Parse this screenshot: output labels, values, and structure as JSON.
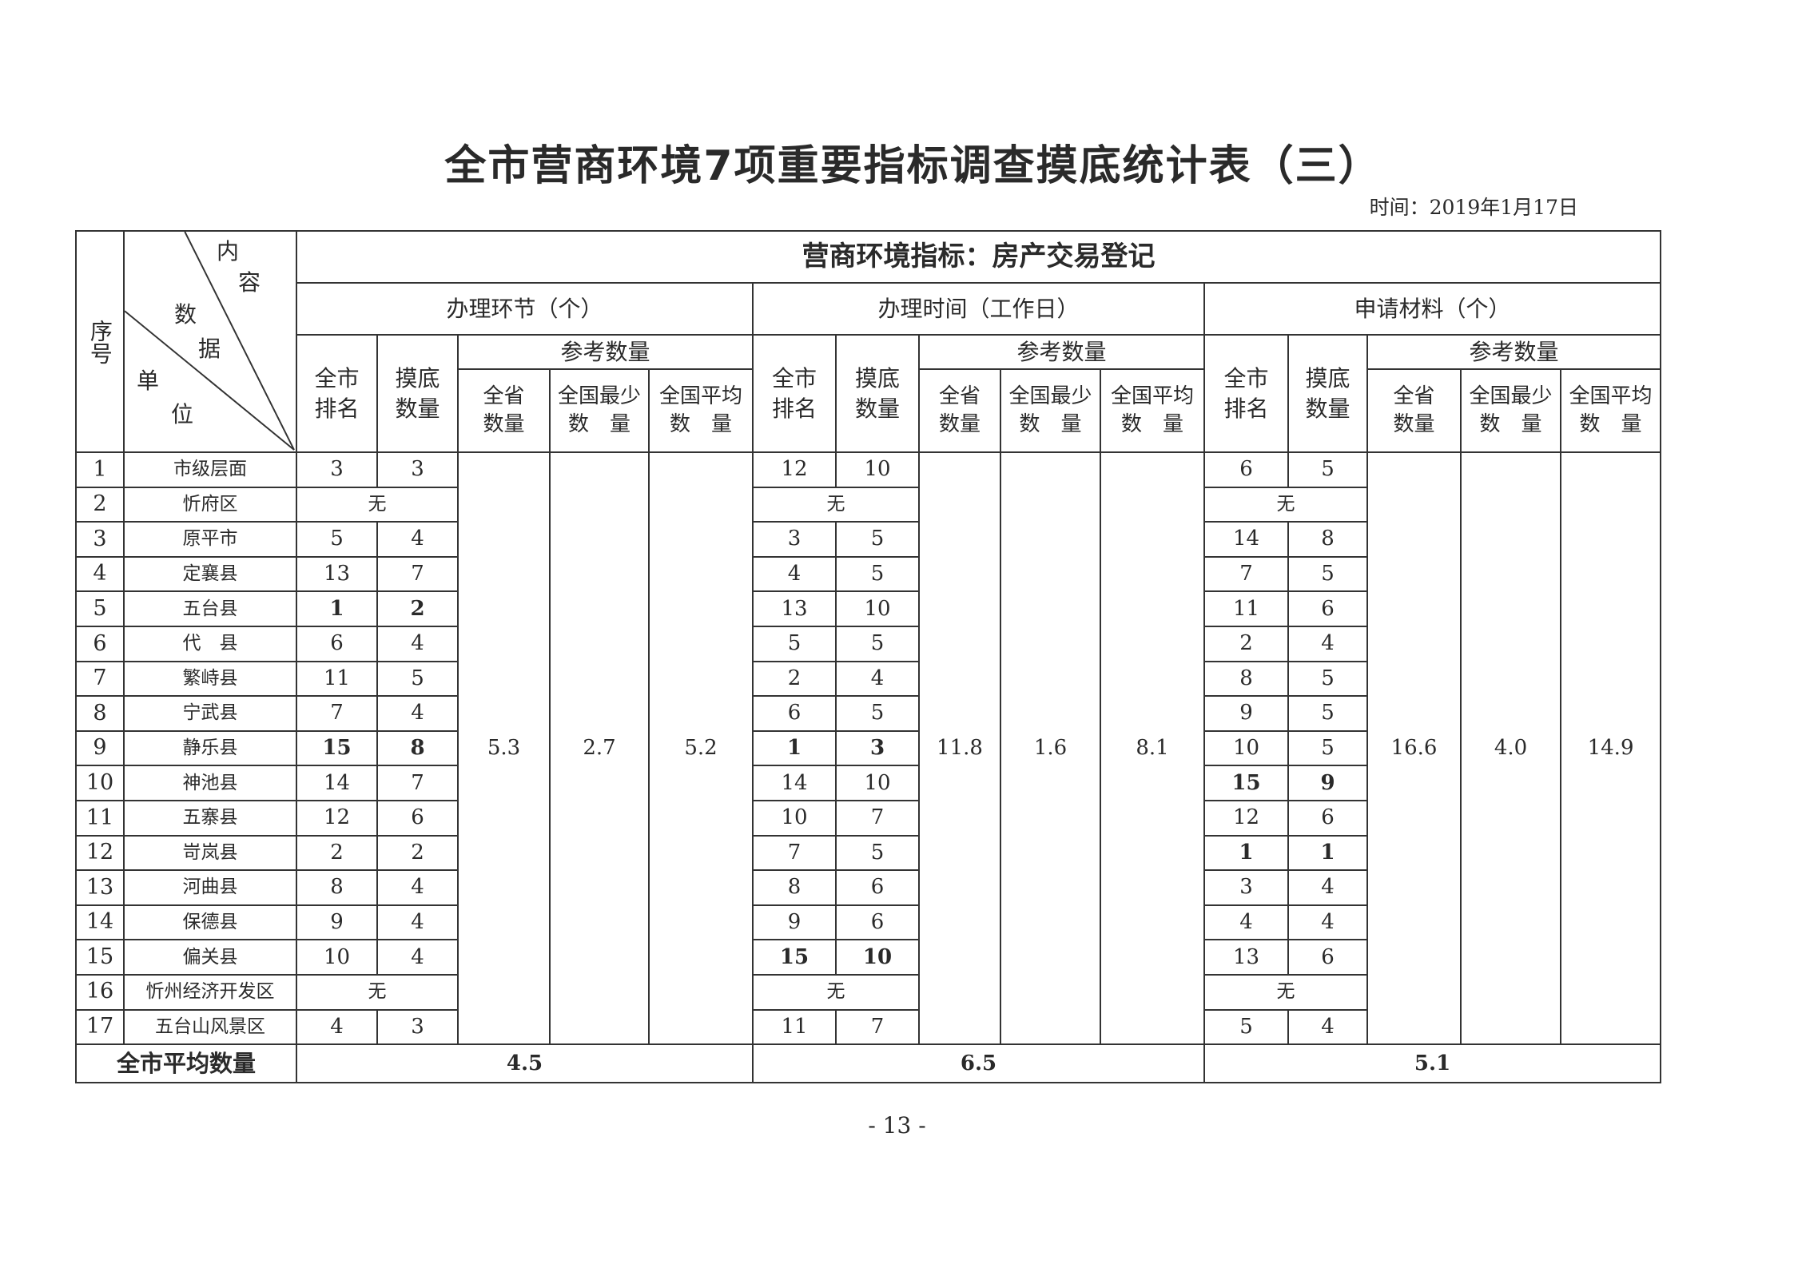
{
  "title": "全市营商环境7项重要指标调查摸底统计表（三）",
  "date": "时间：2019年1月17日",
  "header": {
    "seq": "序号",
    "diag_content": [
      "内",
      "容"
    ],
    "diag_data": [
      "数",
      "据"
    ],
    "diag_unit": [
      "单",
      "位"
    ],
    "indicator": "营商环境指标：房产交易登记",
    "groups": [
      "办理环节（个）",
      "办理时间（工作日）",
      "申请材料（个）"
    ],
    "rank": "全市排名",
    "count": "摸底数量",
    "reference": "参考数量",
    "ref_cols": [
      "全省数量",
      "全国最少数　量",
      "全国平均数　量"
    ]
  },
  "reference_values": [
    [
      "5.3",
      "2.7",
      "5.2"
    ],
    [
      "11.8",
      "1.6",
      "8.1"
    ],
    [
      "16.6",
      "4.0",
      "14.9"
    ]
  ],
  "rows": [
    {
      "seq": "1",
      "unit": "市级层面",
      "g": [
        [
          "3",
          "3"
        ],
        [
          "12",
          "10"
        ],
        [
          "6",
          "5"
        ]
      ]
    },
    {
      "seq": "2",
      "unit": "忻府区",
      "g": [
        "无",
        "无",
        "无"
      ]
    },
    {
      "seq": "3",
      "unit": "原平市",
      "g": [
        [
          "5",
          "4"
        ],
        [
          "3",
          "5"
        ],
        [
          "14",
          "8"
        ]
      ]
    },
    {
      "seq": "4",
      "unit": "定襄县",
      "g": [
        [
          "13",
          "7"
        ],
        [
          "4",
          "5"
        ],
        [
          "7",
          "5"
        ]
      ]
    },
    {
      "seq": "5",
      "unit": "五台县",
      "g": [
        [
          "1",
          "2",
          true
        ],
        [
          "13",
          "10"
        ],
        [
          "11",
          "6"
        ]
      ]
    },
    {
      "seq": "6",
      "unit": "代　县",
      "g": [
        [
          "6",
          "4"
        ],
        [
          "5",
          "5"
        ],
        [
          "2",
          "4"
        ]
      ]
    },
    {
      "seq": "7",
      "unit": "繁峙县",
      "g": [
        [
          "11",
          "5"
        ],
        [
          "2",
          "4"
        ],
        [
          "8",
          "5"
        ]
      ]
    },
    {
      "seq": "8",
      "unit": "宁武县",
      "g": [
        [
          "7",
          "4"
        ],
        [
          "6",
          "5"
        ],
        [
          "9",
          "5"
        ]
      ]
    },
    {
      "seq": "9",
      "unit": "静乐县",
      "g": [
        [
          "15",
          "8",
          true
        ],
        [
          "1",
          "3",
          true
        ],
        [
          "10",
          "5"
        ]
      ]
    },
    {
      "seq": "10",
      "unit": "神池县",
      "g": [
        [
          "14",
          "7"
        ],
        [
          "14",
          "10"
        ],
        [
          "15",
          "9",
          true
        ]
      ]
    },
    {
      "seq": "11",
      "unit": "五寨县",
      "g": [
        [
          "12",
          "6"
        ],
        [
          "10",
          "7"
        ],
        [
          "12",
          "6"
        ]
      ]
    },
    {
      "seq": "12",
      "unit": "岢岚县",
      "g": [
        [
          "2",
          "2"
        ],
        [
          "7",
          "5"
        ],
        [
          "1",
          "1",
          true
        ]
      ]
    },
    {
      "seq": "13",
      "unit": "河曲县",
      "g": [
        [
          "8",
          "4"
        ],
        [
          "8",
          "6"
        ],
        [
          "3",
          "4"
        ]
      ]
    },
    {
      "seq": "14",
      "unit": "保德县",
      "g": [
        [
          "9",
          "4"
        ],
        [
          "9",
          "6"
        ],
        [
          "4",
          "4"
        ]
      ]
    },
    {
      "seq": "15",
      "unit": "偏关县",
      "g": [
        [
          "10",
          "4"
        ],
        [
          "15",
          "10",
          true
        ],
        [
          "13",
          "6"
        ]
      ]
    },
    {
      "seq": "16",
      "unit": "忻州经济开发区",
      "g": [
        "无",
        "无",
        "无"
      ]
    },
    {
      "seq": "17",
      "unit": "五台山风景区",
      "g": [
        [
          "4",
          "3"
        ],
        [
          "11",
          "7"
        ],
        [
          "5",
          "4"
        ]
      ]
    }
  ],
  "average": {
    "label": "全市平均数量",
    "values": [
      "4.5",
      "6.5",
      "5.1"
    ]
  },
  "page_number": "- 13 -"
}
